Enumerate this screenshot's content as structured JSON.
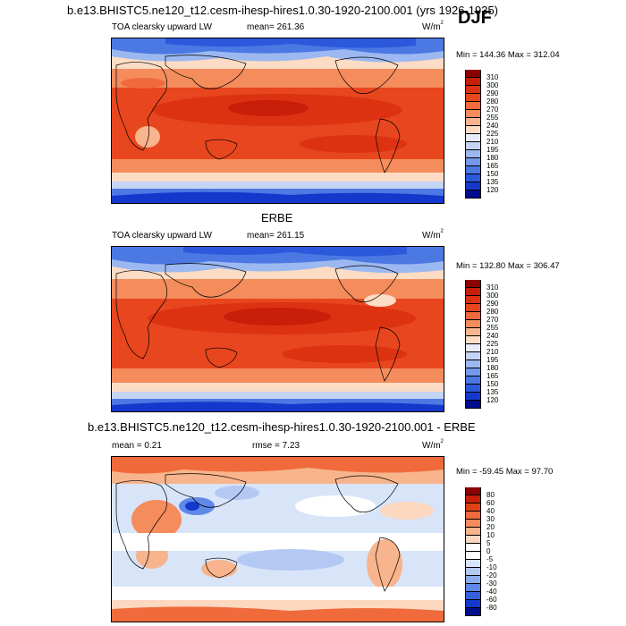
{
  "header": {
    "model_title": "b.e13.BHISTC5.ne120_t12.cesm-ihesp-hires1.0.30-1920-2100.001 (yrs 1926-1935)",
    "season": "DJF"
  },
  "panels": [
    {
      "id": "model",
      "variable": "TOA clearsky upward LW",
      "mean_text": "mean= 261.36",
      "units": "W/m",
      "units_exp": "2",
      "minmax_text": "Min = 144.36 Max = 312.04",
      "colorbar_labels": [
        "310",
        "300",
        "290",
        "280",
        "270",
        "255",
        "240",
        "225",
        "210",
        "195",
        "180",
        "165",
        "150",
        "135",
        "120"
      ]
    },
    {
      "id": "obs",
      "title": "ERBE",
      "variable": "TOA clearsky upward LW",
      "mean_text": "mean= 261.15",
      "units": "W/m",
      "units_exp": "2",
      "minmax_text": "Min = 132.80 Max = 306.47",
      "colorbar_labels": [
        "310",
        "300",
        "290",
        "280",
        "270",
        "255",
        "240",
        "225",
        "210",
        "195",
        "180",
        "165",
        "150",
        "135",
        "120"
      ]
    },
    {
      "id": "diff",
      "title": "b.e13.BHISTC5.ne120_t12.cesm-ihesp-hires1.0.30-1920-2100.001 - ERBE",
      "mean_text": "mean =   0.21",
      "rmse_text": "rmse =   7.23",
      "units": "W/m",
      "units_exp": "2",
      "minmax_text": "Min = -59.45 Max =  97.70",
      "colorbar_labels": [
        "80",
        "60",
        "40",
        "30",
        "20",
        "10",
        "5",
        "0",
        "-5",
        "-10",
        "-20",
        "-30",
        "-40",
        "-60",
        "-80"
      ]
    }
  ],
  "colors": {
    "abs_scale": [
      "#8b0000",
      "#c81e0a",
      "#dc3212",
      "#e8461e",
      "#f06a3c",
      "#f48c5c",
      "#f8b48c",
      "#fcdcc4",
      "#e8ecf8",
      "#c4d4f4",
      "#9cb8f0",
      "#7498ec",
      "#4c78e4",
      "#2c58dc",
      "#1438cc",
      "#000c8c"
    ],
    "diff_scale": [
      "#8b0000",
      "#c81e0a",
      "#e04016",
      "#f06a3c",
      "#f48c5c",
      "#f8b48c",
      "#fcd8c0",
      "#ffffff",
      "#ffffff",
      "#d8e4f8",
      "#b4c8f4",
      "#8cacf0",
      "#6088e8",
      "#3460dc",
      "#1438cc",
      "#000c8c"
    ]
  }
}
